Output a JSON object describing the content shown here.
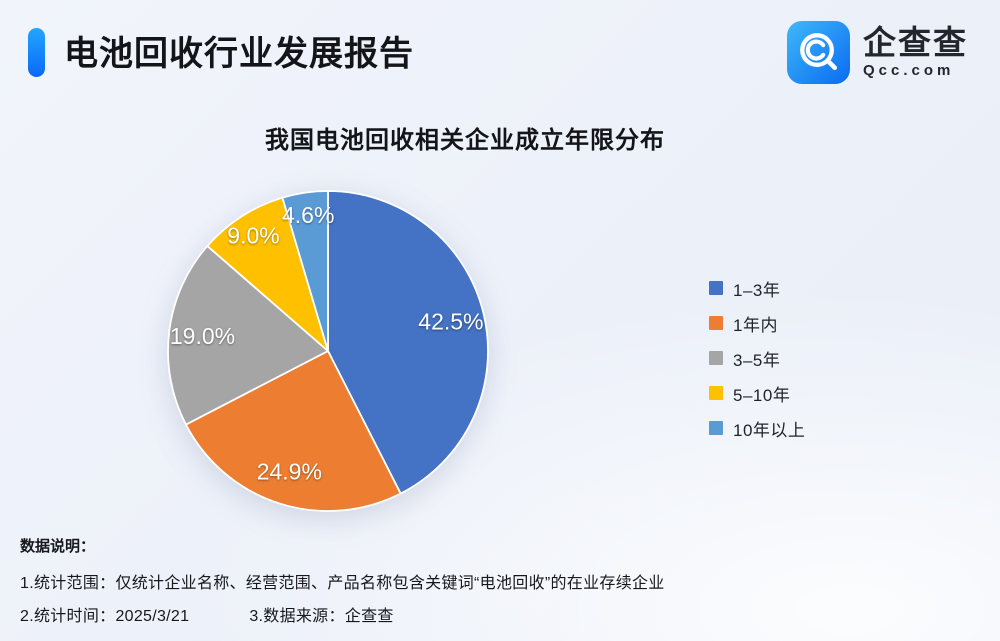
{
  "header": {
    "title": "电池回收行业发展报告",
    "logo": {
      "name": "企查查",
      "domain": "Qcc.com"
    }
  },
  "chart_data": {
    "type": "pie",
    "title": "我国电池回收相关企业成立年限分布",
    "categories": [
      "1–3年",
      "1年内",
      "3–5年",
      "5–10年",
      "10年以上"
    ],
    "values": [
      42.5,
      24.9,
      19.0,
      9.0,
      4.6
    ],
    "unit": "%",
    "slices": [
      {
        "label": "1–3年",
        "value": 42.5,
        "display": "42.5%",
        "color": "#4472C4"
      },
      {
        "label": "1年内",
        "value": 24.9,
        "display": "24.9%",
        "color": "#ED7D31"
      },
      {
        "label": "3–5年",
        "value": 19.0,
        "display": "19.0%",
        "color": "#A5A5A5"
      },
      {
        "label": "5–10年",
        "value": 9.0,
        "display": "9.0%",
        "color": "#FFC000"
      },
      {
        "label": "10年以上",
        "value": 4.6,
        "display": "4.6%",
        "color": "#5B9BD5"
      }
    ],
    "start_angle_deg": 0,
    "direction": "clockwise",
    "legend_position": "right",
    "slice_border_color": "#ffffff"
  },
  "footnotes": {
    "heading": "数据说明：",
    "line1": "1.统计范围：仅统计企业名称、经营范围、产品名称包含关键词“电池回收”的在业存续企业",
    "line2_time": "2.统计时间：2025/3/21",
    "line2_source": "3.数据来源：企查查"
  }
}
